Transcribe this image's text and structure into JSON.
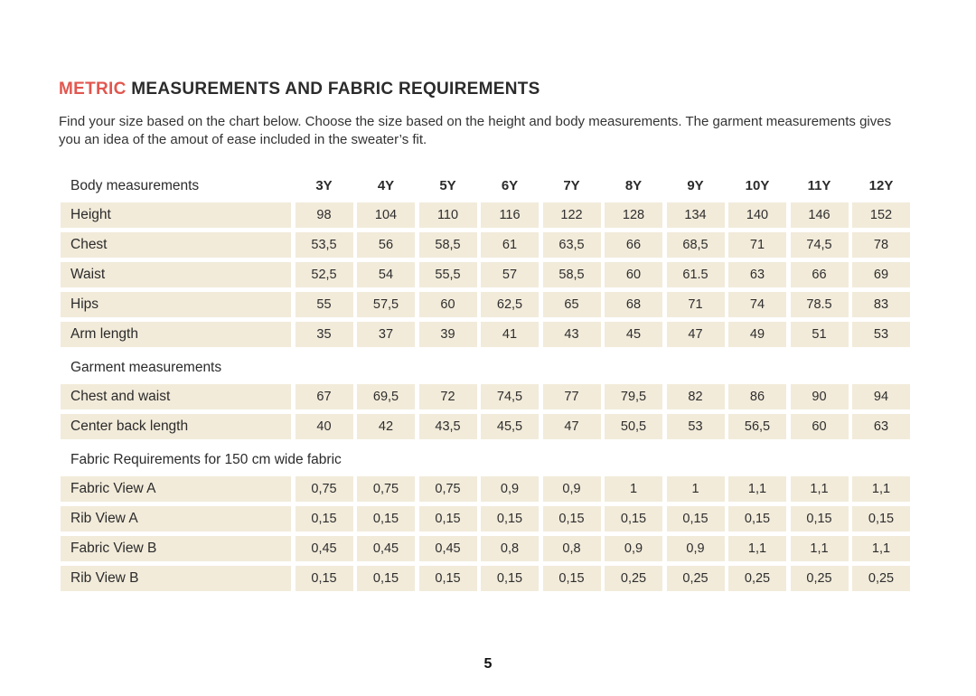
{
  "page": {
    "title_highlight": "METRIC",
    "title_rest": " MEASUREMENTS AND FABRIC REQUIREMENTS",
    "intro": "Find your size based on the chart below. Choose the size based on the height and body measurements. The garment measurements gives you an idea of the amout of ease included in the sweater’s fit.",
    "page_number": "5"
  },
  "colors": {
    "accent": "#e2564f",
    "cell_background": "#f2ebda",
    "text": "#2b2b2b"
  },
  "chart_data": {
    "type": "table",
    "title": "METRIC MEASUREMENTS AND FABRIC REQUIREMENTS",
    "columns": [
      "Body measurements",
      "3Y",
      "4Y",
      "5Y",
      "6Y",
      "7Y",
      "8Y",
      "9Y",
      "10Y",
      "11Y",
      "12Y"
    ],
    "rows": [
      {
        "kind": "data",
        "label": "Height",
        "values": [
          "98",
          "104",
          "110",
          "116",
          "122",
          "128",
          "134",
          "140",
          "146",
          "152"
        ]
      },
      {
        "kind": "data",
        "label": "Chest",
        "values": [
          "53,5",
          "56",
          "58,5",
          "61",
          "63,5",
          "66",
          "68,5",
          "71",
          "74,5",
          "78"
        ]
      },
      {
        "kind": "data",
        "label": "Waist",
        "values": [
          "52,5",
          "54",
          "55,5",
          "57",
          "58,5",
          "60",
          "61.5",
          "63",
          "66",
          "69"
        ]
      },
      {
        "kind": "data",
        "label": "Hips",
        "values": [
          "55",
          "57,5",
          "60",
          "62,5",
          "65",
          "68",
          "71",
          "74",
          "78.5",
          "83"
        ]
      },
      {
        "kind": "data",
        "label": "Arm length",
        "values": [
          "35",
          "37",
          "39",
          "41",
          "43",
          "45",
          "47",
          "49",
          "51",
          "53"
        ]
      },
      {
        "kind": "section",
        "label": "Garment measurements"
      },
      {
        "kind": "data",
        "label": "Chest and waist",
        "values": [
          "67",
          "69,5",
          "72",
          "74,5",
          "77",
          "79,5",
          "82",
          "86",
          "90",
          "94"
        ]
      },
      {
        "kind": "data",
        "label": "Center back length",
        "values": [
          "40",
          "42",
          "43,5",
          "45,5",
          "47",
          "50,5",
          "53",
          "56,5",
          "60",
          "63"
        ]
      },
      {
        "kind": "section",
        "label": "Fabric Requirements for 150 cm wide fabric"
      },
      {
        "kind": "data",
        "label": "Fabric View A",
        "values": [
          "0,75",
          "0,75",
          "0,75",
          "0,9",
          "0,9",
          "1",
          "1",
          "1,1",
          "1,1",
          "1,1"
        ]
      },
      {
        "kind": "data",
        "label": "Rib View A",
        "values": [
          "0,15",
          "0,15",
          "0,15",
          "0,15",
          "0,15",
          "0,15",
          "0,15",
          "0,15",
          "0,15",
          "0,15"
        ]
      },
      {
        "kind": "data",
        "label": "Fabric View B",
        "values": [
          "0,45",
          "0,45",
          "0,45",
          "0,8",
          "0,8",
          "0,9",
          "0,9",
          "1,1",
          "1,1",
          "1,1"
        ]
      },
      {
        "kind": "data",
        "label": "Rib View B",
        "values": [
          "0,15",
          "0,15",
          "0,15",
          "0,15",
          "0,15",
          "0,25",
          "0,25",
          "0,25",
          "0,25",
          "0,25"
        ]
      }
    ]
  }
}
